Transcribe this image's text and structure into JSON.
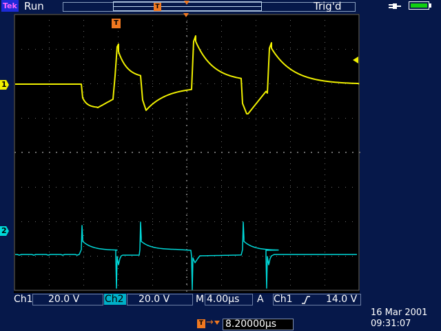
{
  "header": {
    "brand": "Tek",
    "run_state": "Run",
    "trigger_state": "Trig'd",
    "record_marker": "T",
    "power_icon": "power-plug-icon",
    "battery_icon": "battery-icon",
    "battery_level": 1.0
  },
  "markers": {
    "ch1": "1",
    "ch2": "2",
    "trigger_position": "T"
  },
  "colors": {
    "ch1": "#f0f000",
    "ch2": "#00d8d8",
    "trigger": "#f07820",
    "frame": "#06184a"
  },
  "readouts": {
    "ch1_label": "Ch1",
    "ch1_scale": "20.0 V",
    "ch2_label": "Ch2",
    "ch2_scale": "20.0 V",
    "timebase_label": "M",
    "timebase": "4.00µs",
    "trigger_mode": "A",
    "trigger_source": "Ch1",
    "trigger_slope_icon": "rising-edge-icon",
    "trigger_level": "14.0 V",
    "delay": "8.20000µs",
    "date": "16 Mar 2001",
    "time": "09:31:07"
  }
}
